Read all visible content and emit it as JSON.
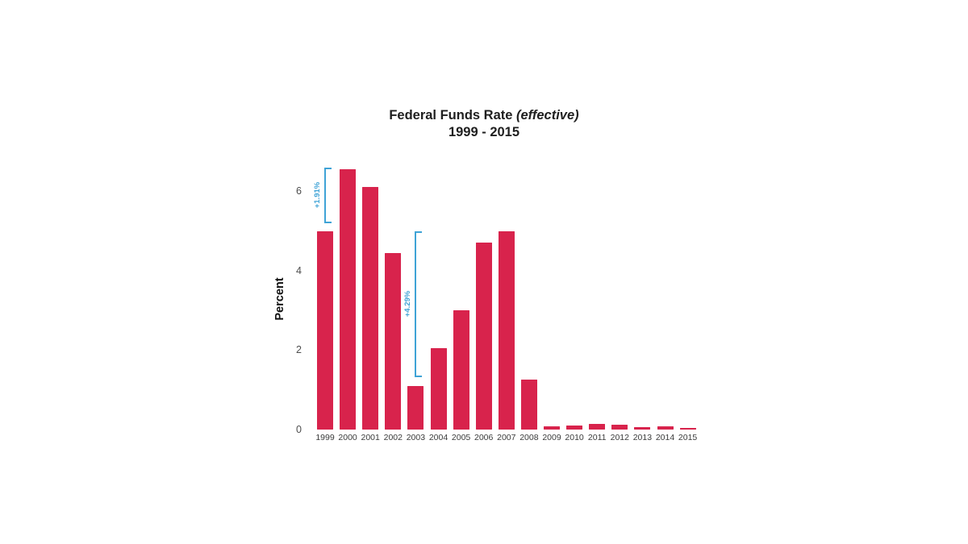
{
  "title": {
    "main": "Federal Funds Rate ",
    "emphasis": "(effective)",
    "subtitle": "1999 - 2015"
  },
  "chart_data": {
    "type": "bar",
    "title": "Federal Funds Rate (effective) 1999 - 2015",
    "xlabel": "",
    "ylabel": "Percent",
    "ylim": [
      0,
      6.8
    ],
    "yticks": [
      0,
      2,
      4,
      6
    ],
    "grid": false,
    "legend": false,
    "bar_color": "#d8234c",
    "categories": [
      "1999",
      "2000",
      "2001",
      "2002",
      "2003",
      "2004",
      "2005",
      "2006",
      "2007",
      "2008",
      "2009",
      "2010",
      "2011",
      "2012",
      "2013",
      "2014",
      "2015"
    ],
    "values": [
      5.0,
      6.55,
      6.1,
      4.45,
      1.1,
      2.05,
      3.0,
      4.7,
      5.0,
      1.25,
      0.08,
      0.1,
      0.15,
      0.13,
      0.06,
      0.08,
      0.04
    ],
    "annotations": [
      {
        "label": "+1.91%",
        "year": "1999",
        "value_from": 5.2,
        "value_to": 6.6,
        "color": "#3fa3d6"
      },
      {
        "label": "+4.29%",
        "year": "2003",
        "value_from": 1.32,
        "value_to": 5.0,
        "color": "#3fa3d6"
      }
    ]
  }
}
